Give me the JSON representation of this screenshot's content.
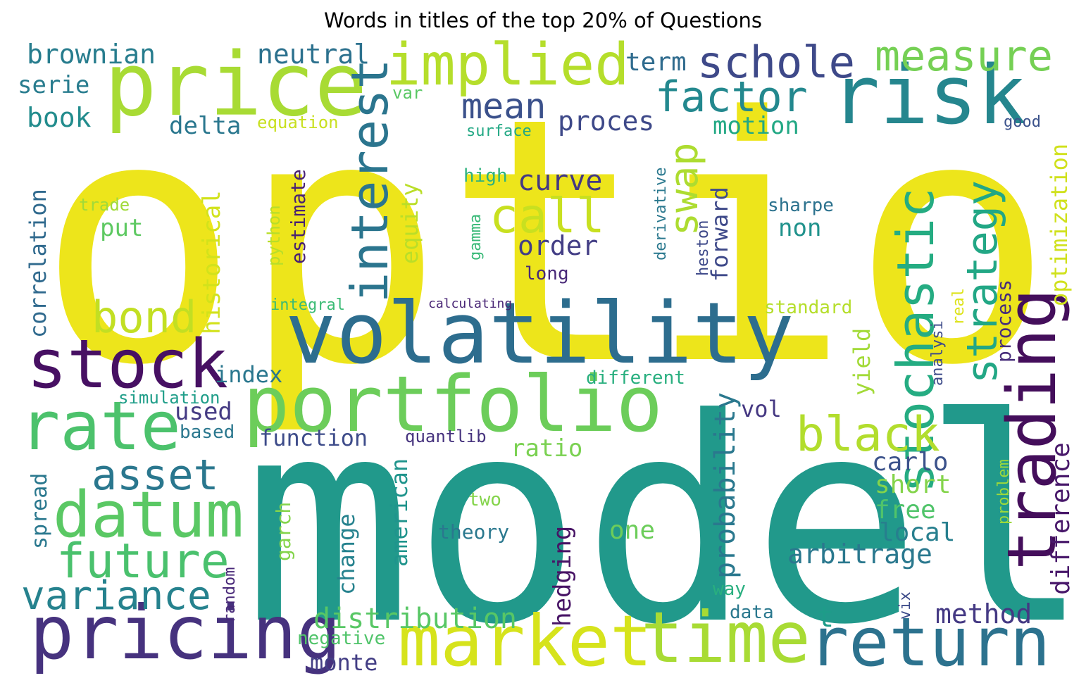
{
  "title": "Words in titles of the top 20% of Questions",
  "words": [
    {
      "text": "option",
      "color": "#ede51b"
    },
    {
      "text": "model",
      "color": "#21998b"
    },
    {
      "text": "volatility",
      "color": "#2d6d8e"
    },
    {
      "text": "price",
      "color": "#a8db34"
    },
    {
      "text": "risk",
      "color": "#25868e"
    },
    {
      "text": "portfolio",
      "color": "#6ccd5a"
    },
    {
      "text": "market",
      "color": "#d6e31c"
    },
    {
      "text": "time",
      "color": "#a8db34"
    },
    {
      "text": "pricing",
      "color": "#46327e"
    },
    {
      "text": "return",
      "color": "#2c728e"
    },
    {
      "text": "trading",
      "color": "#440e5b"
    },
    {
      "text": "stock",
      "color": "#471063"
    },
    {
      "text": "rate",
      "color": "#4cc26c"
    },
    {
      "text": "implied",
      "color": "#b5de2b"
    },
    {
      "text": "datum",
      "color": "#5ac864"
    },
    {
      "text": "stochastic",
      "color": "#25ac82"
    },
    {
      "text": "interest",
      "color": "#2b758e"
    },
    {
      "text": "measure",
      "color": "#75d054"
    },
    {
      "text": "schole",
      "color": "#3e4989"
    },
    {
      "text": "factor",
      "color": "#23888e"
    },
    {
      "text": "black",
      "color": "#b2dd2d"
    },
    {
      "text": "future",
      "color": "#4ac16d"
    },
    {
      "text": "strategy",
      "color": "#22a785"
    },
    {
      "text": "bond",
      "color": "#c2df23"
    },
    {
      "text": "call",
      "color": "#c8e020"
    },
    {
      "text": "variance",
      "color": "#26828e"
    },
    {
      "text": "asset",
      "color": "#2a778e"
    },
    {
      "text": "swap",
      "color": "#addc30"
    },
    {
      "text": "brownian",
      "color": "#287d8e"
    },
    {
      "text": "neutral",
      "color": "#2c718e"
    },
    {
      "text": "mean",
      "color": "#3b518b"
    },
    {
      "text": "term",
      "color": "#2f6b8e"
    },
    {
      "text": "serie",
      "color": "#287c8e"
    },
    {
      "text": "book",
      "color": "#228c8d"
    },
    {
      "text": "delta",
      "color": "#2a778e"
    },
    {
      "text": "equation",
      "color": "#c8e020"
    },
    {
      "text": "proces",
      "color": "#3e4989"
    },
    {
      "text": "surface",
      "color": "#22a884"
    },
    {
      "text": "var",
      "color": "#5ac864"
    },
    {
      "text": "motion",
      "color": "#22a884"
    },
    {
      "text": "good",
      "color": "#3b528b"
    },
    {
      "text": "optimization",
      "color": "#d0e11c"
    },
    {
      "text": "correlation",
      "color": "#306a8e"
    },
    {
      "text": "historical",
      "color": "#d2e21b"
    },
    {
      "text": "trade",
      "color": "#a0da39"
    },
    {
      "text": "put",
      "color": "#5ec962"
    },
    {
      "text": "curve",
      "color": "#443983"
    },
    {
      "text": "order",
      "color": "#433e85"
    },
    {
      "text": "equity",
      "color": "#bade28"
    },
    {
      "text": "high",
      "color": "#2db27d"
    },
    {
      "text": "estimate",
      "color": "#482173"
    },
    {
      "text": "python",
      "color": "#b8de29"
    },
    {
      "text": "derivative",
      "color": "#2a788e"
    },
    {
      "text": "gamma",
      "color": "#38b977"
    },
    {
      "text": "forward",
      "color": "#3e4989"
    },
    {
      "text": "heston",
      "color": "#3e4989"
    },
    {
      "text": "sharpe",
      "color": "#2c728e"
    },
    {
      "text": "non",
      "color": "#20928c"
    },
    {
      "text": "process",
      "color": "#472d7b"
    },
    {
      "text": "long",
      "color": "#482878"
    },
    {
      "text": "integral",
      "color": "#3bbb75"
    },
    {
      "text": "calculating",
      "color": "#482575"
    },
    {
      "text": "standard",
      "color": "#b5de2b"
    },
    {
      "text": "real",
      "color": "#dde318"
    },
    {
      "text": "analysi",
      "color": "#3e4c8a"
    },
    {
      "text": "index",
      "color": "#2a778e"
    },
    {
      "text": "different",
      "color": "#29af7f"
    },
    {
      "text": "simulation",
      "color": "#1f9e89"
    },
    {
      "text": "used",
      "color": "#443a83"
    },
    {
      "text": "based",
      "color": "#2a778e"
    },
    {
      "text": "probability",
      "color": "#2a788e"
    },
    {
      "text": "yield",
      "color": "#a2da37"
    },
    {
      "text": "vol",
      "color": "#453882"
    },
    {
      "text": "function",
      "color": "#3e4c8a"
    },
    {
      "text": "quantlib",
      "color": "#46337e"
    },
    {
      "text": "ratio",
      "color": "#7ad151"
    },
    {
      "text": "carlo",
      "color": "#3b528b"
    },
    {
      "text": "short",
      "color": "#84d44b"
    },
    {
      "text": "free",
      "color": "#50c46a"
    },
    {
      "text": "local",
      "color": "#277f8e"
    },
    {
      "text": "difference",
      "color": "#48186a"
    },
    {
      "text": "problem",
      "color": "#9dd93b"
    },
    {
      "text": "spread",
      "color": "#2a788e"
    },
    {
      "text": "american",
      "color": "#1f948c"
    },
    {
      "text": "two",
      "color": "#84d44b"
    },
    {
      "text": "theory",
      "color": "#2a788e"
    },
    {
      "text": "one",
      "color": "#6ccd5a"
    },
    {
      "text": "arbitrage",
      "color": "#2a788e"
    },
    {
      "text": "change",
      "color": "#26828e"
    },
    {
      "text": "hedging",
      "color": "#471365"
    },
    {
      "text": "garch",
      "color": "#84d44b"
    },
    {
      "text": "random",
      "color": "#482878"
    },
    {
      "text": "way",
      "color": "#29af7f"
    },
    {
      "text": "vix",
      "color": "#3e4c8a"
    },
    {
      "text": "data",
      "color": "#2a788e"
    },
    {
      "text": "t",
      "color": "#1e9c89"
    },
    {
      "text": "method",
      "color": "#443983"
    },
    {
      "text": "distribution",
      "color": "#58c765"
    },
    {
      "text": "negative",
      "color": "#50c46a"
    },
    {
      "text": "monte",
      "color": "#433e85"
    }
  ]
}
